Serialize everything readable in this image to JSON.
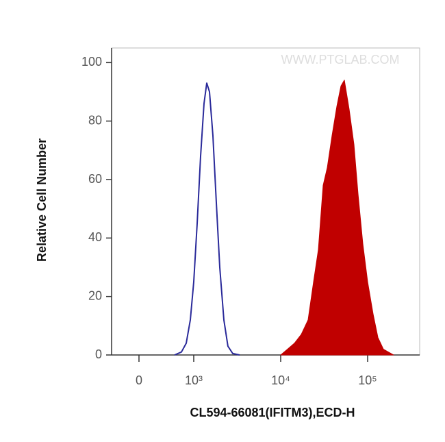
{
  "chart_data": {
    "type": "line",
    "xlabel": "CL594-66081(IFITM3),ECD-H",
    "ylabel": "Relative Cell Number",
    "watermark": "WWW.PTGLAB.COM",
    "xscale": "biexponential",
    "xlim": [
      -500,
      400000
    ],
    "xticks": [
      {
        "value": 0,
        "label": "0"
      },
      {
        "value": 1000,
        "label": "10³"
      },
      {
        "value": 10000,
        "label": "10⁴"
      },
      {
        "value": 100000,
        "label": "10⁵"
      }
    ],
    "ylim": [
      0,
      105
    ],
    "yticks": [
      0,
      20,
      40,
      60,
      80,
      100
    ],
    "series": [
      {
        "color": "#2a2a9a",
        "fill": false,
        "x": [
          650,
          775,
          862,
          937,
          1000,
          1095,
          1199,
          1313,
          1411,
          1517,
          1662,
          1819,
          1992,
          2219,
          2470,
          2810,
          3370
        ],
        "values": [
          0,
          1,
          4,
          12,
          25,
          45,
          68,
          86,
          93,
          90,
          75,
          52,
          30,
          12,
          3,
          0.5,
          0
        ]
      },
      {
        "color": "#c00000",
        "fill": true,
        "x": [
          10000,
          11980,
          14370,
          17230,
          20650,
          23880,
          27100,
          30790,
          34300,
          38960,
          44250,
          49320,
          53970,
          61240,
          69620,
          77620,
          88110,
          100000,
          115600,
          131300,
          151700,
          199000
        ],
        "values": [
          0,
          2,
          4,
          7,
          12,
          25,
          36,
          58,
          64,
          75,
          85,
          92,
          94,
          84,
          72,
          55,
          38,
          25,
          14,
          6,
          2,
          0
        ]
      }
    ]
  }
}
